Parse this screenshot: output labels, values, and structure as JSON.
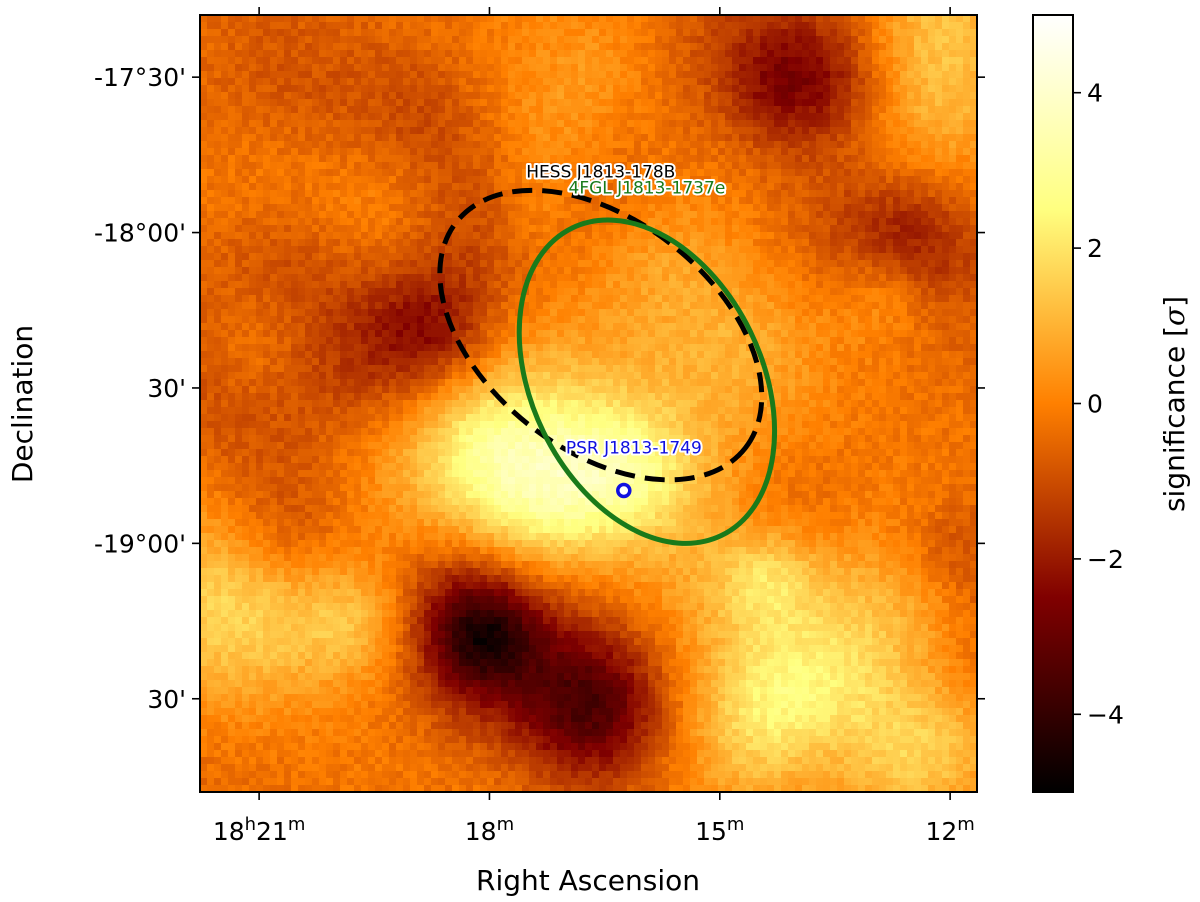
{
  "chart_data": {
    "type": "heatmap",
    "title": "",
    "xlabel": "Right Ascension",
    "ylabel": "Declination",
    "x_ticks": [
      {
        "ra_min": 21,
        "label_main": "18",
        "label_sup1": "h",
        "label_mid": "21",
        "label_sup2": "m"
      },
      {
        "ra_min": 18,
        "label_main": "18",
        "label_sup1": "m"
      },
      {
        "ra_min": 15,
        "label_main": "15",
        "label_sup1": "m"
      },
      {
        "ra_min": 12,
        "label_main": "12",
        "label_sup1": "m"
      }
    ],
    "y_ticks": [
      {
        "dec_deg": -17.5,
        "label": "-17°30'"
      },
      {
        "dec_deg": -18.0,
        "label": "-18°00'"
      },
      {
        "dec_deg": -18.5,
        "label": "30'"
      },
      {
        "dec_deg": -19.0,
        "label": "-19°00'"
      },
      {
        "dec_deg": -19.5,
        "label": "30'"
      }
    ],
    "colorbar": {
      "label_text": "significance [",
      "label_symbol": "σ",
      "label_end": "]",
      "range": [
        -5,
        5
      ],
      "ticks": [
        {
          "value": 4,
          "label": "4"
        },
        {
          "value": 2,
          "label": "2"
        },
        {
          "value": 0,
          "label": "0"
        },
        {
          "value": -2,
          "label": "−2"
        },
        {
          "value": -4,
          "label": "−4"
        }
      ],
      "colormap": "afmhot",
      "colors": [
        "#000000",
        "#800000",
        "#ff8000",
        "#ffff80",
        "#ffffff"
      ]
    },
    "grid": false,
    "map_extent": {
      "ra_min_left": 21.77,
      "ra_min_right": 11.65,
      "dec_top": -17.3,
      "dec_bottom": -19.8
    },
    "sources": [
      {
        "name": "HESS J1813-178B",
        "shape": "ellipse",
        "line": "dashed",
        "color": "#000000",
        "ra_min": 16.55,
        "dec_deg": -18.33,
        "semi_major_deg": 0.59,
        "semi_minor_deg": 0.37,
        "tilt_deg": 38
      },
      {
        "name": "4FGL J1813-1737e",
        "shape": "ellipse",
        "line": "solid",
        "color": "#1a7a1a",
        "ra_min": 15.95,
        "dec_deg": -18.48,
        "semi_major_deg": 0.55,
        "semi_minor_deg": 0.37,
        "tilt_deg": 64
      },
      {
        "name": "PSR J1813-1749",
        "shape": "point",
        "color": "#1010e0",
        "ra_min": 16.25,
        "dec_deg": -18.83
      }
    ]
  }
}
